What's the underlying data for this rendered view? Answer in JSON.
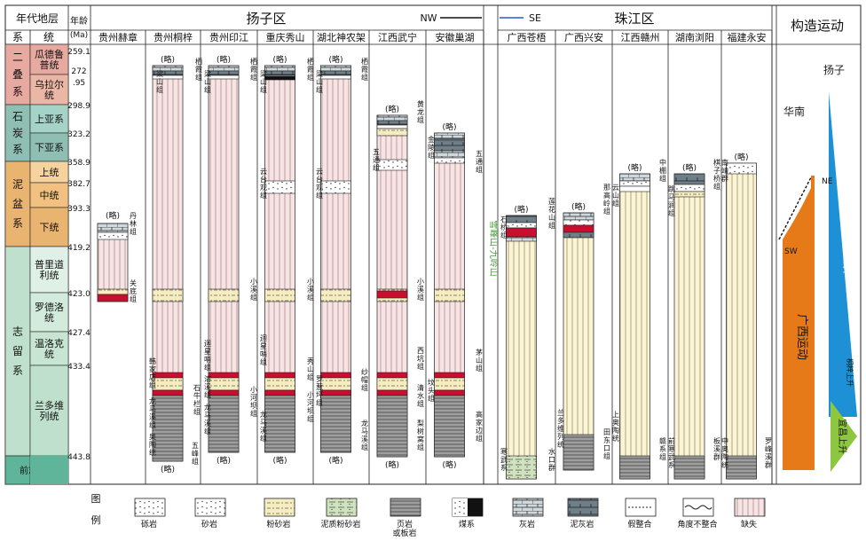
{
  "header": {
    "era_title": "年代地层",
    "age_label": "年龄",
    "age_unit": "(Ma)",
    "system_col": "系",
    "series_col": "统",
    "yangtze_region": "扬子区",
    "pearl_region": "珠江区",
    "tectonic_title": "构造运动",
    "direction_nw": "NW",
    "direction_se": "SE"
  },
  "systems": [
    {
      "name": "二叠系",
      "color": "#e8a9a0"
    },
    {
      "name": "石炭系",
      "color": "#8fbfb3"
    },
    {
      "name": "泥盆系",
      "color": "#e9b370"
    },
    {
      "name": "志留系",
      "color": "#bfe0cc"
    },
    {
      "name": "前志留系",
      "color": "#5fb59a"
    }
  ],
  "series": [
    {
      "name": "瓜德鲁普统",
      "color": "#e8a9a0"
    },
    {
      "name": "乌拉尔统",
      "color": "#eab6a6"
    },
    {
      "name": "上亚系",
      "color": "#a6d3c7"
    },
    {
      "name": "下亚系",
      "color": "#8fbfb3"
    },
    {
      "name": "上统",
      "color": "#f6d39e"
    },
    {
      "name": "中统",
      "color": "#f2c081"
    },
    {
      "name": "下统",
      "color": "#e9b370"
    },
    {
      "name": "普里道利统",
      "color": "#dff0e6"
    },
    {
      "name": "罗德洛统",
      "color": "#d3ebdc"
    },
    {
      "name": "温洛克统",
      "color": "#c7e5d2"
    },
    {
      "name": "兰多维列统",
      "color": "#bfe0cc"
    }
  ],
  "ages": [
    "259.1",
    "272",
    ".95",
    "298.9",
    "323.2",
    "358.9",
    "382.7",
    "393.3",
    "419.2",
    "423.0",
    "427.4",
    "433.4",
    "443.8"
  ],
  "columns": [
    {
      "name": "贵州赫章"
    },
    {
      "name": "贵州桐梓"
    },
    {
      "name": "贵州印江"
    },
    {
      "name": "重庆秀山"
    },
    {
      "name": "湖北神农架"
    },
    {
      "name": "江西武宁"
    },
    {
      "name": "安徽巢湖"
    },
    {
      "name": "广西苍梧"
    },
    {
      "name": "广西兴安"
    },
    {
      "name": "江西赣州"
    },
    {
      "name": "湖南浏阳"
    },
    {
      "name": "福建永安"
    }
  ],
  "formations": {
    "lue": "(略)",
    "danlin": "丹林组",
    "guanding": "关底组",
    "liangshan": "梁山组",
    "qixia": "栖霞组",
    "hanjiadian": "韩家店组",
    "shiniulan": "石牛栏组",
    "longmaxi": "龙马溪组",
    "wufeng": "五峰组",
    "ordovician_strata": "奥陶统",
    "xiaoxi": "小溪组",
    "xiuyang": "溶溪组",
    "huixingshao": "迴星哨组",
    "xiuyang2": "秀山组",
    "xiaoheba": "小河坝组",
    "yuntaiguan": "云台观组",
    "shamao": "纱帽组",
    "luoreping": "罗惹坪组",
    "wutong": "五通组",
    "huanglong": "黄龙组",
    "xikeng": "西坑组",
    "qingshui": "清水组",
    "lixiwu": "梨树窝组",
    "fenggang": "坟头组",
    "gaojiabian": "高家边组",
    "maoshan": "茅山组",
    "jinling": "金陵组",
    "shihuafang": "石桥组",
    "zhongshan": "中棚组",
    "hanwu": "寒武系",
    "lianhuashan": "莲花山组",
    "naogaoling": "那高岭组",
    "yunshan": "云山组",
    "lanrong": "兰多维列统",
    "tiandongkou": "田东口组",
    "shangaotao": "上奥陶统",
    "qiantaohe": "前寒武系",
    "tiaomaojian": "跳马涧组",
    "qiziqiao": "棋子桥组",
    "nanjing": "南靖群",
    "luoyang": "罗峰溪群",
    "shikou": "水口群",
    "jiaxi": "赣系组",
    "banshan": "板溪群",
    "zhongaotao": "中奥陶统",
    "yunnaishan": "云台山",
    "xuefengshan": "雪峰山-九岭山"
  },
  "tectonic": {
    "yangzi": "扬子",
    "huanan": "华南",
    "ne": "NE",
    "sw": "SW",
    "guangxi_movement": "广西运动",
    "yangzi_uplift": "扬子上升",
    "tongzi_uplift": "桐梓上升",
    "yichang_uplift": "宜昌上升"
  },
  "legend": {
    "title1": "图",
    "title2": "例",
    "items": [
      {
        "label": "砾岩"
      },
      {
        "label": "砂岩"
      },
      {
        "label": "粉砂岩"
      },
      {
        "label": "泥质粉砂岩"
      },
      {
        "label": "页岩\n或板岩"
      },
      {
        "label": "煤系"
      },
      {
        "label": "灰岩"
      },
      {
        "label": "泥灰岩"
      },
      {
        "label": "假整合"
      },
      {
        "label": "角度不整合"
      },
      {
        "label": "缺失"
      }
    ]
  },
  "colors": {
    "permian": "#e8a9a0",
    "carboniferous": "#8fbfb3",
    "devonian": "#e9b370",
    "silurian": "#bfe0cc",
    "presilurian": "#5fb59a",
    "missing_yangtze": "#f6dede",
    "missing_pearl": "#fbf5d6",
    "coal": "#c8102e",
    "guangxi_movement": "#e67a19",
    "yangzi_uplift": "#1e90d6",
    "yichang_uplift": "#8dc63f"
  }
}
